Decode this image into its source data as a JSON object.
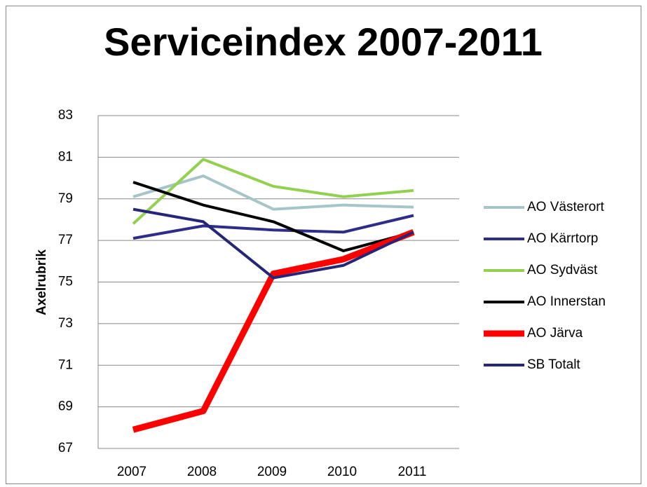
{
  "chart_data": {
    "type": "line",
    "title": "Serviceindex 2007-2011",
    "y_label": "Axelrubrik",
    "categories": [
      "2007",
      "2008",
      "2009",
      "2010",
      "2011"
    ],
    "ylim": [
      67,
      83
    ],
    "yticks": [
      67,
      69,
      71,
      73,
      75,
      77,
      79,
      81,
      83
    ],
    "grid": true,
    "legend": "right",
    "series": [
      {
        "name": "AO Västerort",
        "color": "#a5c5c9",
        "line_width": 4,
        "values": [
          79.1,
          80.1,
          78.5,
          78.7,
          78.6
        ]
      },
      {
        "name": "AO Kärrtorp",
        "color": "#2e2e8a",
        "line_width": 4,
        "values": [
          77.1,
          77.7,
          77.5,
          77.4,
          78.2
        ]
      },
      {
        "name": "AO Sydväst",
        "color": "#92d050",
        "line_width": 4,
        "values": [
          77.8,
          80.9,
          79.6,
          79.1,
          79.4
        ]
      },
      {
        "name": "AO Innerstan",
        "color": "#000000",
        "line_width": 4,
        "values": [
          79.8,
          78.7,
          77.9,
          76.5,
          77.4
        ]
      },
      {
        "name": "AO Järva",
        "color": "#ff0000",
        "line_width": 9,
        "values": [
          67.9,
          68.8,
          75.4,
          76.1,
          77.4
        ]
      },
      {
        "name": "SB Totalt",
        "color": "#262678",
        "line_width": 4,
        "values": [
          78.5,
          77.9,
          75.2,
          75.8,
          77.4
        ]
      }
    ]
  }
}
